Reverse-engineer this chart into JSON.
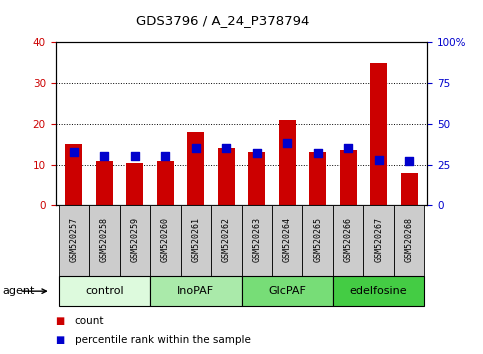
{
  "title": "GDS3796 / A_24_P378794",
  "samples": [
    "GSM520257",
    "GSM520258",
    "GSM520259",
    "GSM520260",
    "GSM520261",
    "GSM520262",
    "GSM520263",
    "GSM520264",
    "GSM520265",
    "GSM520266",
    "GSM520267",
    "GSM520268"
  ],
  "count_values": [
    15.0,
    11.0,
    10.5,
    11.0,
    18.0,
    14.0,
    13.0,
    21.0,
    13.0,
    13.5,
    35.0,
    8.0
  ],
  "percentile_values": [
    33,
    30,
    30,
    30,
    35,
    35,
    32,
    38,
    32,
    35,
    28,
    27
  ],
  "bar_color": "#CC0000",
  "dot_color": "#0000CC",
  "ylim_left": [
    0,
    40
  ],
  "ylim_right": [
    0,
    100
  ],
  "yticks_left": [
    0,
    10,
    20,
    30,
    40
  ],
  "yticks_right": [
    0,
    25,
    50,
    75,
    100
  ],
  "ytick_labels_right": [
    "0",
    "25",
    "50",
    "75",
    "100%"
  ],
  "groups": [
    {
      "label": "control",
      "start": 0,
      "end": 3,
      "color": "#DDFADD"
    },
    {
      "label": "InoPAF",
      "start": 3,
      "end": 6,
      "color": "#AAEAAA"
    },
    {
      "label": "GlcPAF",
      "start": 6,
      "end": 9,
      "color": "#77DD77"
    },
    {
      "label": "edelfosine",
      "start": 9,
      "end": 12,
      "color": "#44CC44"
    }
  ],
  "agent_label": "agent",
  "legend_count_label": "count",
  "legend_percentile_label": "percentile rank within the sample",
  "bar_width": 0.55,
  "dot_size": 30,
  "background_color": "#FFFFFF",
  "grid_color": "#000000",
  "tick_color_left": "#CC0000",
  "tick_color_right": "#0000CC",
  "xlabel_area_bg": "#CCCCCC"
}
